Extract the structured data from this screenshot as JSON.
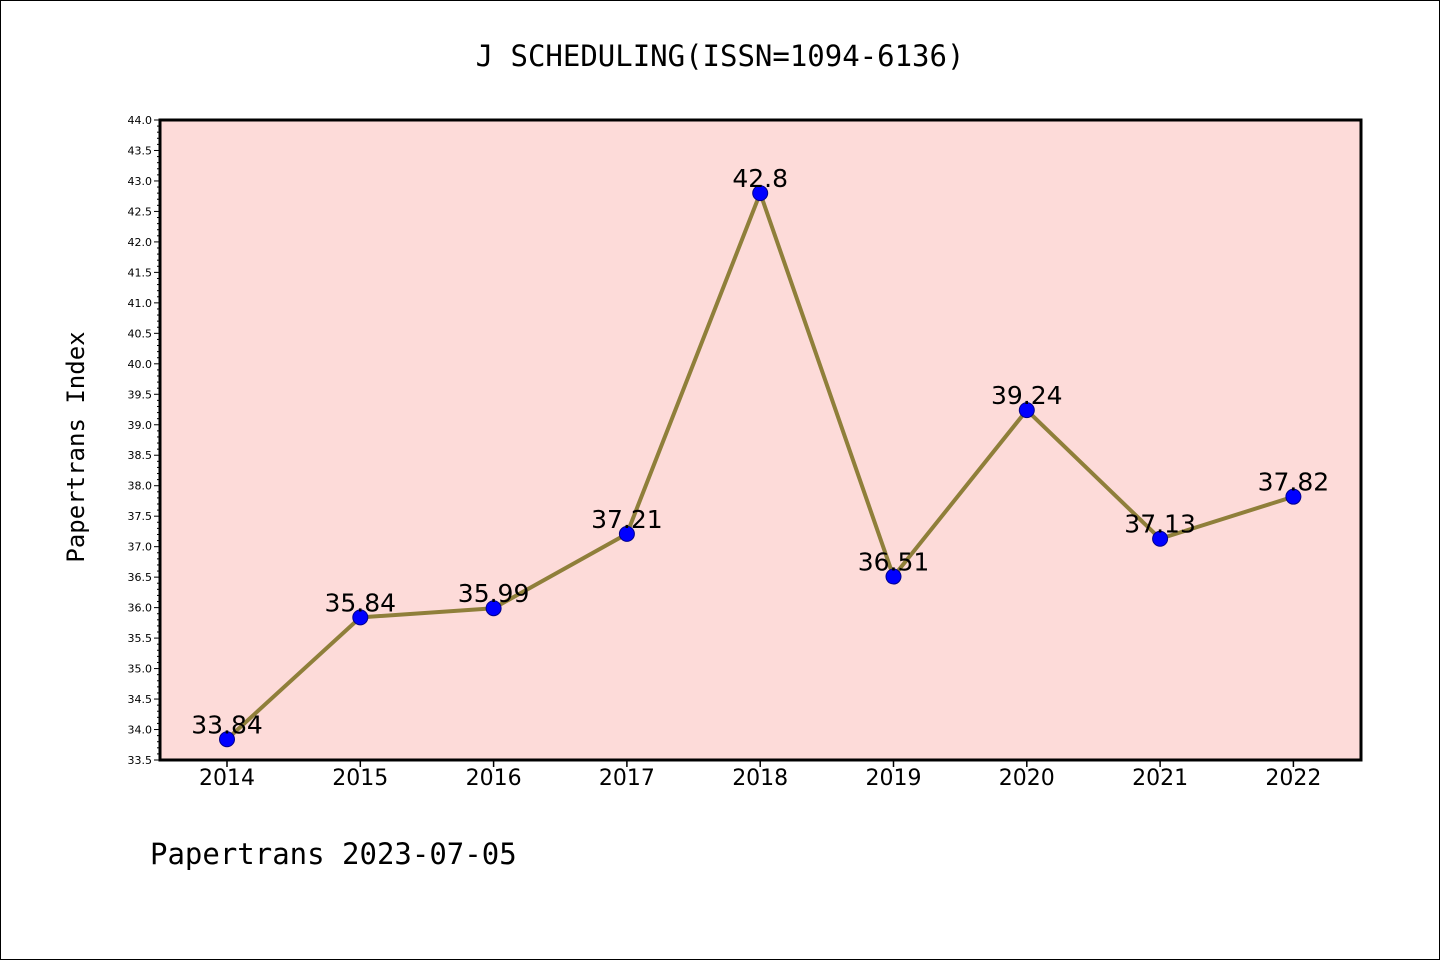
{
  "chart_data": {
    "type": "line",
    "title": "J SCHEDULING(ISSN=1094-6136)",
    "xlabel": "",
    "ylabel": "Papertrans Index",
    "footer": "Papertrans 2023-07-05",
    "categories": [
      "2014",
      "2015",
      "2016",
      "2017",
      "2018",
      "2019",
      "2020",
      "2021",
      "2022"
    ],
    "series": [
      {
        "name": "Papertrans Index",
        "values": [
          33.84,
          35.84,
          35.99,
          37.21,
          42.8,
          36.51,
          39.24,
          37.13,
          37.82
        ],
        "labels": [
          "33.84",
          "35.84",
          "35.99",
          "37.21",
          "42.8",
          "36.51",
          "39.24",
          "37.13",
          "37.82"
        ]
      }
    ],
    "ylim": [
      33.5,
      44.0
    ],
    "yticks": [
      "33.5",
      "34.0",
      "34.5",
      "35.0",
      "35.5",
      "36.0",
      "36.5",
      "37.0",
      "37.5",
      "38.0",
      "38.5",
      "39.0",
      "39.5",
      "40.0",
      "40.5",
      "41.0",
      "41.5",
      "42.0",
      "42.5",
      "43.0",
      "43.5",
      "44.0"
    ],
    "grid": false,
    "colors": {
      "plot_background": "#fddbd9",
      "line": "#8f7f3a",
      "marker": "#0000ff",
      "marker_edge": "#00008b",
      "axis": "#000000"
    }
  }
}
